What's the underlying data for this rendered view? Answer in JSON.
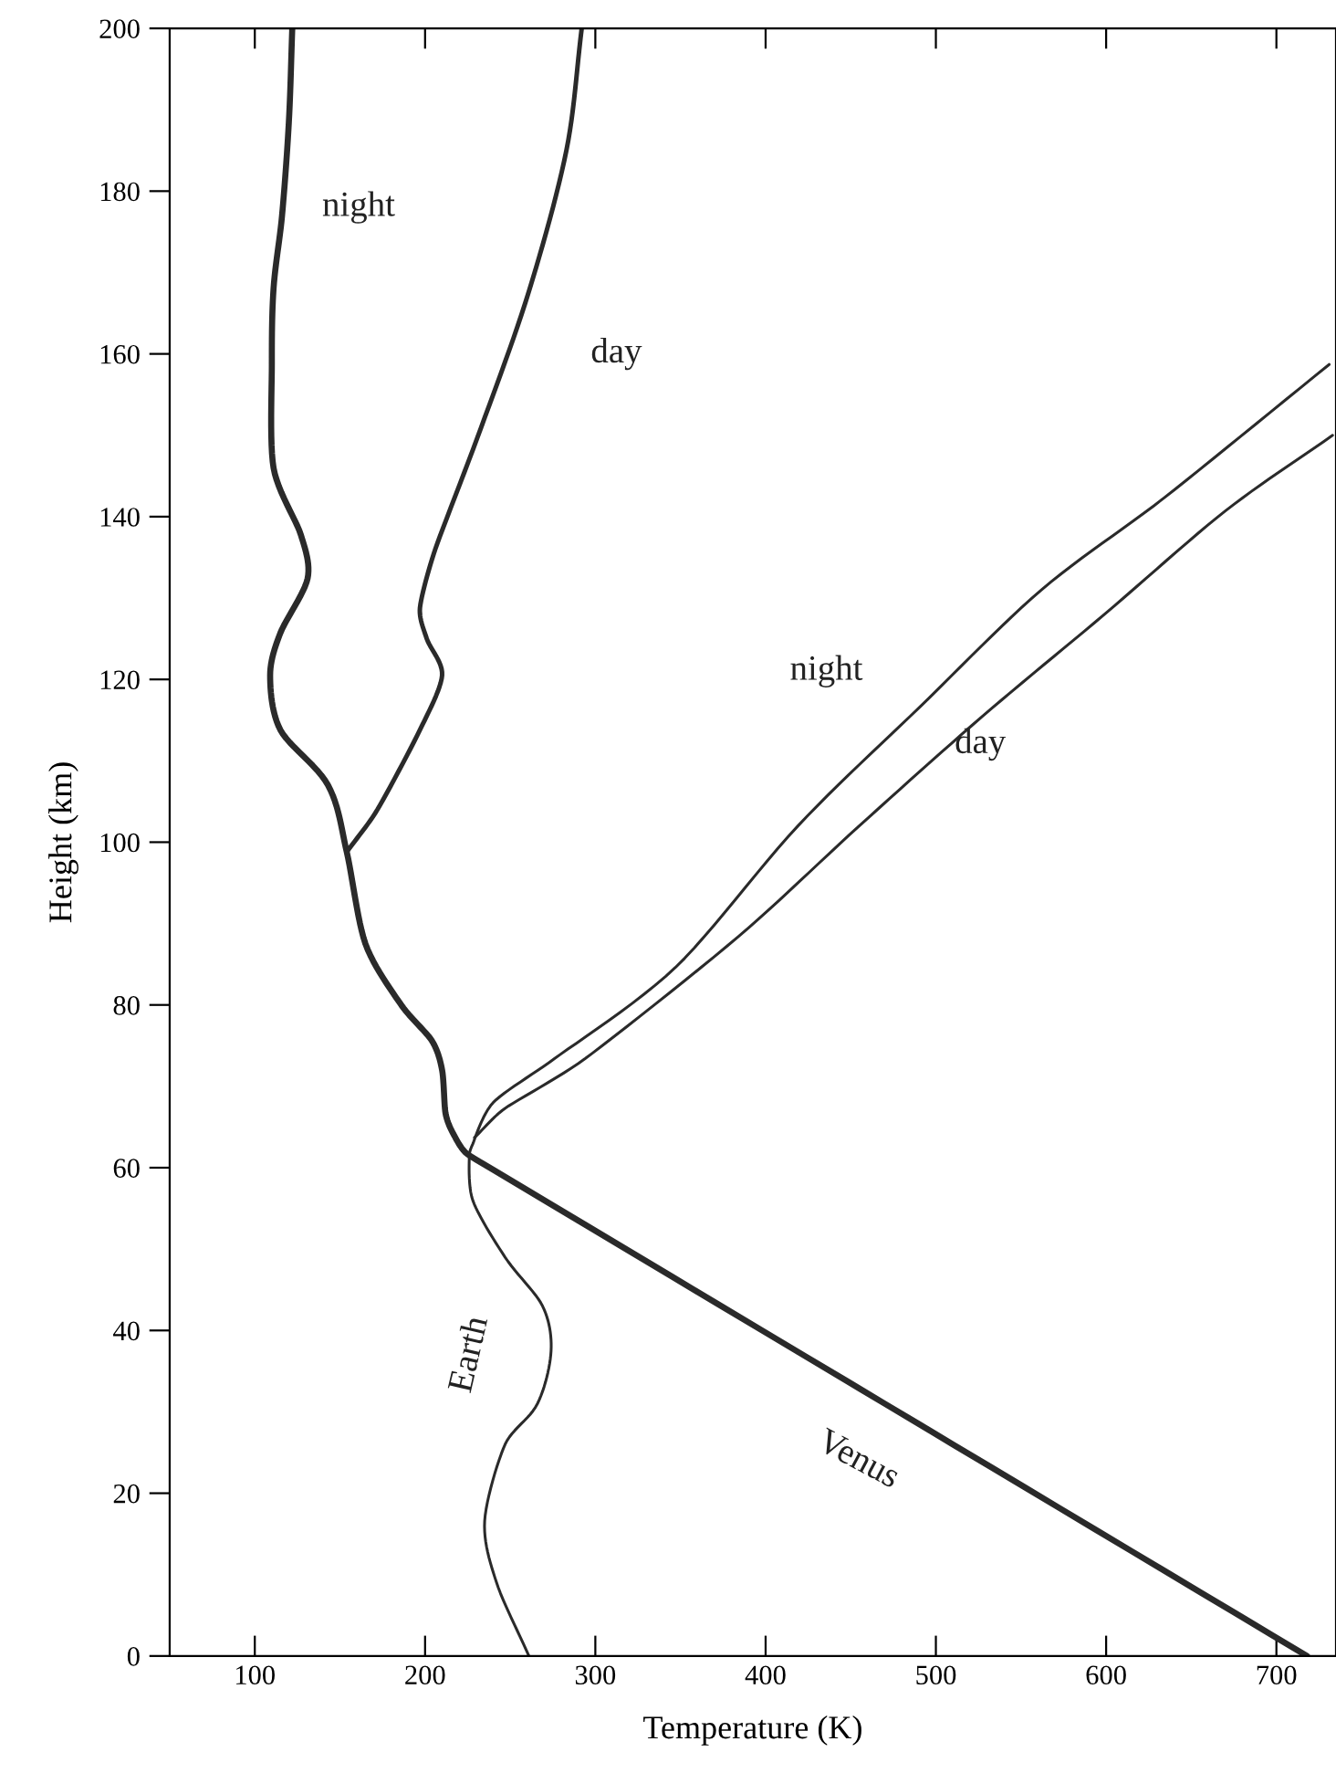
{
  "chart_data": {
    "type": "line",
    "xlabel": "Temperature (K)",
    "ylabel": "Height (km)",
    "xlim": [
      50,
      735
    ],
    "ylim": [
      0,
      200
    ],
    "xticks": [
      100,
      200,
      300,
      400,
      500,
      600,
      700
    ],
    "yticks": [
      0,
      20,
      40,
      60,
      80,
      100,
      120,
      140,
      160,
      180,
      200
    ],
    "grid": false,
    "legend": false,
    "marker": "none",
    "line_style": "solid",
    "series": [
      {
        "color": "#2a2a2a",
        "x": [
          718,
          470,
          226,
          217,
          212,
          210,
          204,
          186,
          165,
          154,
          143,
          115,
          109,
          115,
          131,
          127,
          111,
          110,
          111,
          116,
          120,
          122
        ],
        "values": [
          0,
          31,
          61.5,
          64,
          66.7,
          72,
          75.6,
          80,
          87.5,
          98.8,
          107,
          113.8,
          120.5,
          125.7,
          132.4,
          137.8,
          146,
          158.7,
          168,
          177,
          188.5,
          200
        ]
      },
      {
        "color": "#2a2a2a",
        "x": [
          154,
          172,
          197,
          210,
          201,
          197,
          206,
          233,
          261,
          283,
          292
        ],
        "values": [
          98.8,
          104,
          113.8,
          120.5,
          125,
          128.8,
          136,
          151,
          167.7,
          185,
          200
        ]
      },
      {
        "color": "#2a2a2a",
        "x": [
          261,
          242,
          235,
          247,
          266,
          274,
          269,
          247,
          228,
          226,
          228,
          240,
          276,
          347,
          419,
          491,
          562,
          634,
          731
        ],
        "values": [
          0,
          9,
          16.6,
          26,
          31,
          37.5,
          43,
          49,
          56,
          61.5,
          62.9,
          68,
          73.4,
          84.6,
          102,
          116.7,
          131,
          142.3,
          158.7
        ]
      },
      {
        "color": "#2a2a2a",
        "x": [
          229,
          247,
          294,
          384,
          455,
          527,
          599,
          670,
          733
        ],
        "values": [
          63.7,
          67.3,
          73.4,
          88.4,
          102,
          115.4,
          128,
          140.7,
          150
        ]
      }
    ],
    "annotations": [
      "night",
      "day",
      "night",
      "day",
      "Earth",
      "Venus"
    ]
  }
}
